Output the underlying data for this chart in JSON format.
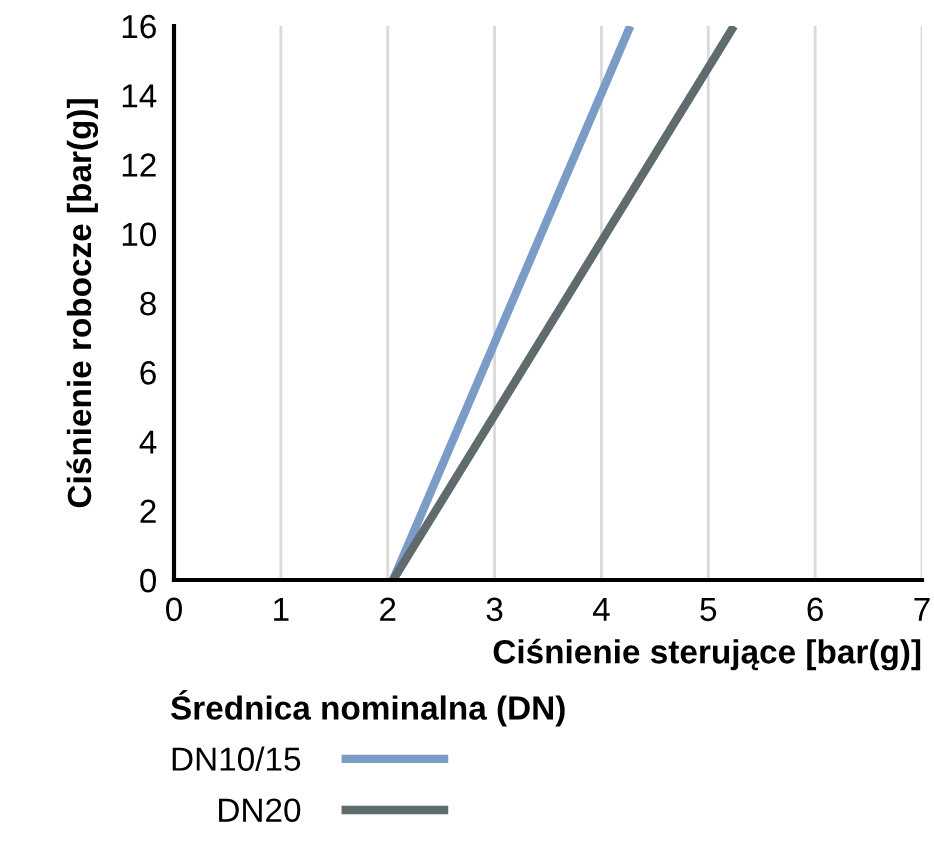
{
  "chart_data": {
    "type": "line",
    "xlabel": "Ciśnienie sterujące [bar(g)]",
    "ylabel": "Ciśnienie robocze [bar(g)]",
    "legend_title": "Średnica nominalna (DN)",
    "series": [
      {
        "name": "DN10/15",
        "color": "#7a9cc6",
        "x": [
          2.05,
          4.27
        ],
        "values": [
          0,
          16
        ]
      },
      {
        "name": "DN20",
        "color": "#5f6b6d",
        "x": [
          2.05,
          5.24
        ],
        "values": [
          0,
          16
        ]
      }
    ],
    "xlim": [
      0,
      7
    ],
    "ylim": [
      0,
      16
    ],
    "xticks": [
      0,
      1,
      2,
      3,
      4,
      5,
      6,
      7
    ],
    "yticks": [
      0,
      2,
      4,
      6,
      8,
      10,
      12,
      14,
      16
    ],
    "grid": "x",
    "legend": "bottom",
    "marker": "none",
    "line_style": "solid"
  }
}
